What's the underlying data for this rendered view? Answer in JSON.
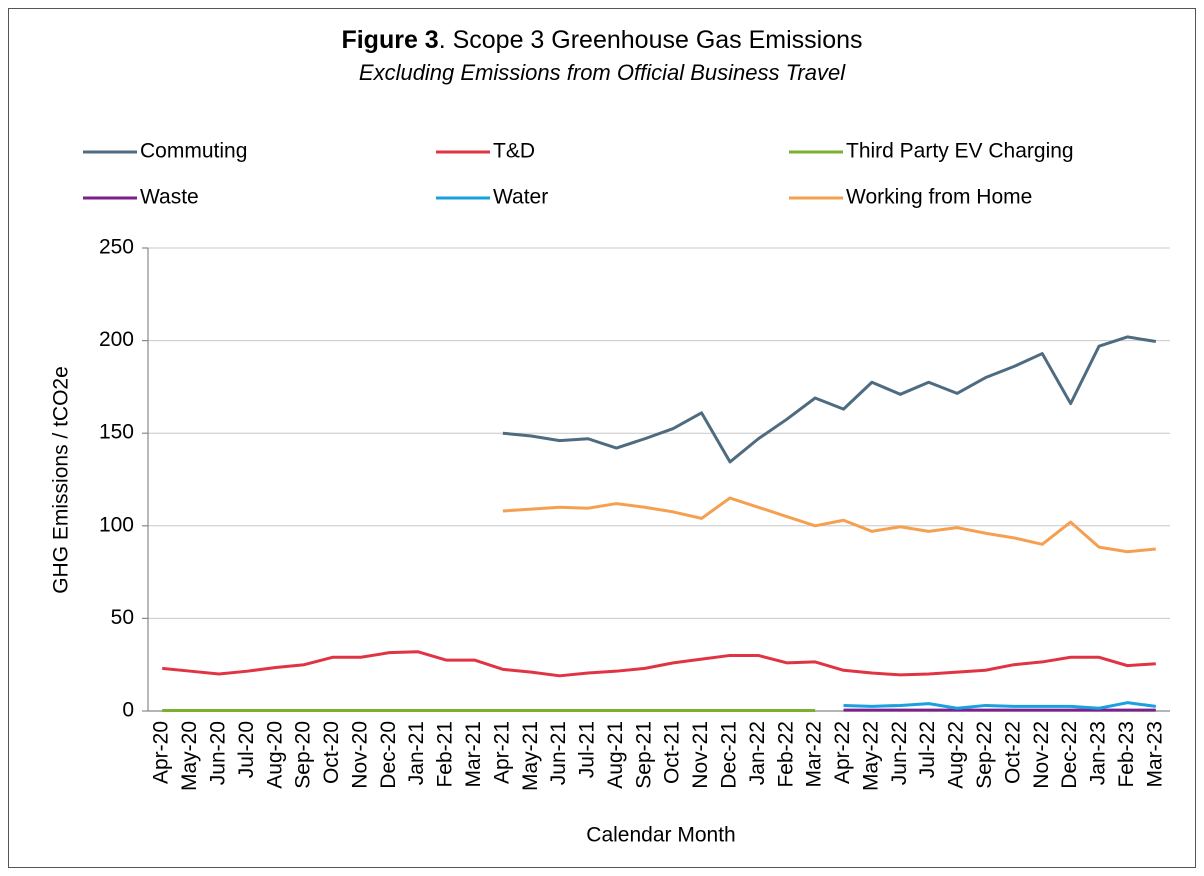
{
  "chart_data": {
    "type": "line",
    "title_label": "Figure 3",
    "title": ".  Scope 3 Greenhouse Gas Emissions",
    "subtitle": "Excluding Emissions from Official Business Travel",
    "x_label": "Calendar Month",
    "y_label": "GHG Emissions / tCO2e",
    "categories": [
      "Apr-20",
      "May-20",
      "Jun-20",
      "Jul-20",
      "Aug-20",
      "Sep-20",
      "Oct-20",
      "Nov-20",
      "Dec-20",
      "Jan-21",
      "Feb-21",
      "Mar-21",
      "Apr-21",
      "May-21",
      "Jun-21",
      "Jul-21",
      "Aug-21",
      "Sep-21",
      "Oct-21",
      "Nov-21",
      "Dec-21",
      "Jan-22",
      "Feb-22",
      "Mar-22",
      "Apr-22",
      "May-22",
      "Jun-22",
      "Jul-22",
      "Aug-22",
      "Sep-22",
      "Oct-22",
      "Nov-22",
      "Dec-22",
      "Jan-23",
      "Feb-23",
      "Mar-23"
    ],
    "ylim": [
      0,
      250
    ],
    "yticks": [
      0,
      50,
      100,
      150,
      200,
      250
    ],
    "grid": true,
    "legend": "top",
    "series": [
      {
        "name": "Commuting",
        "color": "#4e6b80",
        "values": [
          null,
          null,
          null,
          null,
          null,
          null,
          null,
          null,
          null,
          null,
          null,
          null,
          150,
          148.5,
          146,
          147,
          142,
          147,
          152.5,
          161,
          134.5,
          147,
          157.5,
          169,
          163,
          177.5,
          171,
          177.5,
          171.5,
          180,
          186,
          193,
          166,
          197,
          202,
          199.5
        ]
      },
      {
        "name": "T&D",
        "color": "#e03444",
        "values": [
          23,
          21.5,
          20,
          21.5,
          23.5,
          25,
          29,
          29,
          31.5,
          32,
          27.5,
          27.5,
          22.5,
          21,
          19,
          20.5,
          21.5,
          23,
          26,
          28,
          30,
          30,
          26,
          26.5,
          22,
          20.5,
          19.5,
          20,
          21,
          22,
          25,
          26.5,
          29,
          29,
          24.5,
          25.5
        ]
      },
      {
        "name": "Third Party EV Charging",
        "color": "#7ab030",
        "values": [
          0.3,
          0.3,
          0.3,
          0.3,
          0.3,
          0.3,
          0.3,
          0.3,
          0.3,
          0.3,
          0.3,
          0.3,
          0.3,
          0.3,
          0.3,
          0.3,
          0.3,
          0.3,
          0.3,
          0.3,
          0.3,
          0.3,
          0.3,
          0.3,
          null,
          null,
          null,
          null,
          null,
          null,
          null,
          null,
          null,
          null,
          null,
          null
        ]
      },
      {
        "name": "Waste",
        "color": "#7b1f8a",
        "values": [
          null,
          null,
          null,
          null,
          null,
          null,
          null,
          null,
          null,
          null,
          null,
          null,
          null,
          null,
          null,
          null,
          null,
          null,
          null,
          null,
          null,
          null,
          null,
          null,
          0.5,
          0.5,
          0.5,
          0.5,
          0.5,
          0.5,
          0.5,
          0.5,
          0.5,
          0.5,
          0.5,
          0.5
        ]
      },
      {
        "name": "Water",
        "color": "#1aa0e0",
        "values": [
          null,
          null,
          null,
          null,
          null,
          null,
          null,
          null,
          null,
          null,
          null,
          null,
          null,
          null,
          null,
          null,
          null,
          null,
          null,
          null,
          null,
          null,
          null,
          null,
          3,
          2.5,
          3,
          4,
          1.5,
          3,
          2.5,
          2.5,
          2.5,
          1.5,
          4.5,
          2.5
        ]
      },
      {
        "name": "Working from Home",
        "color": "#f5a050",
        "values": [
          null,
          null,
          null,
          null,
          null,
          null,
          null,
          null,
          null,
          null,
          null,
          null,
          108,
          109,
          110,
          109.5,
          112,
          110,
          107.5,
          104,
          115,
          110,
          105,
          100,
          103,
          97,
          99.5,
          97,
          99,
          96,
          93.5,
          90,
          102,
          88.5,
          86,
          87.5
        ]
      }
    ]
  }
}
